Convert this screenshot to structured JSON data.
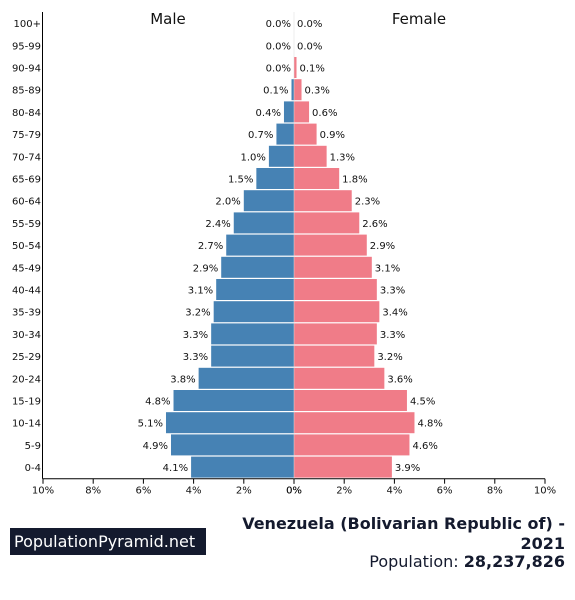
{
  "chart_data": {
    "type": "population-pyramid",
    "title": "Venezuela (Bolivarian Republic of) - 2021",
    "left_label": "Male",
    "right_label": "Female",
    "categories": [
      "100+",
      "95-99",
      "90-94",
      "85-89",
      "80-84",
      "75-79",
      "70-74",
      "65-69",
      "60-64",
      "55-59",
      "50-54",
      "45-49",
      "40-44",
      "35-39",
      "30-34",
      "25-29",
      "20-24",
      "15-19",
      "10-14",
      "5-9",
      "0-4"
    ],
    "series": [
      {
        "name": "Male",
        "values": [
          0.0,
          0.0,
          0.0,
          0.1,
          0.4,
          0.7,
          1.0,
          1.5,
          2.0,
          2.4,
          2.7,
          2.9,
          3.1,
          3.2,
          3.3,
          3.3,
          3.8,
          4.8,
          5.1,
          4.9,
          4.1
        ]
      },
      {
        "name": "Female",
        "values": [
          0.0,
          0.0,
          0.1,
          0.3,
          0.6,
          0.9,
          1.3,
          1.8,
          2.3,
          2.6,
          2.9,
          3.1,
          3.3,
          3.4,
          3.3,
          3.2,
          3.6,
          4.5,
          4.8,
          4.6,
          3.9
        ]
      }
    ],
    "value_labels": {
      "male": [
        "0.0%",
        "0.0%",
        "0.0%",
        "0.1%",
        "0.4%",
        "0.7%",
        "1.0%",
        "1.5%",
        "2.0%",
        "2.4%",
        "2.7%",
        "2.9%",
        "3.1%",
        "3.2%",
        "3.3%",
        "3.3%",
        "3.8%",
        "4.8%",
        "5.1%",
        "4.9%",
        "4.1%"
      ],
      "female": [
        "0.0%",
        "0.0%",
        "0.1%",
        "0.3%",
        "0.6%",
        "0.9%",
        "1.3%",
        "1.8%",
        "2.3%",
        "2.6%",
        "2.9%",
        "3.1%",
        "3.3%",
        "3.4%",
        "3.3%",
        "3.2%",
        "3.6%",
        "4.5%",
        "4.8%",
        "4.6%",
        "3.9%"
      ]
    },
    "x_ticks_male": [
      "10%",
      "8%",
      "6%",
      "4%",
      "2%",
      "0%"
    ],
    "x_ticks_female": [
      "0%",
      "2%",
      "4%",
      "6%",
      "8%",
      "10%"
    ],
    "xlim": [
      0,
      10
    ],
    "colors": {
      "male": "#4682b4",
      "female": "#f07c88"
    }
  },
  "footer": {
    "brand": "PopulationPyramid.net",
    "title": "Venezuela (Bolivarian Republic of) - 2021",
    "population_label": "Population:",
    "population_value": "28,237,826"
  }
}
